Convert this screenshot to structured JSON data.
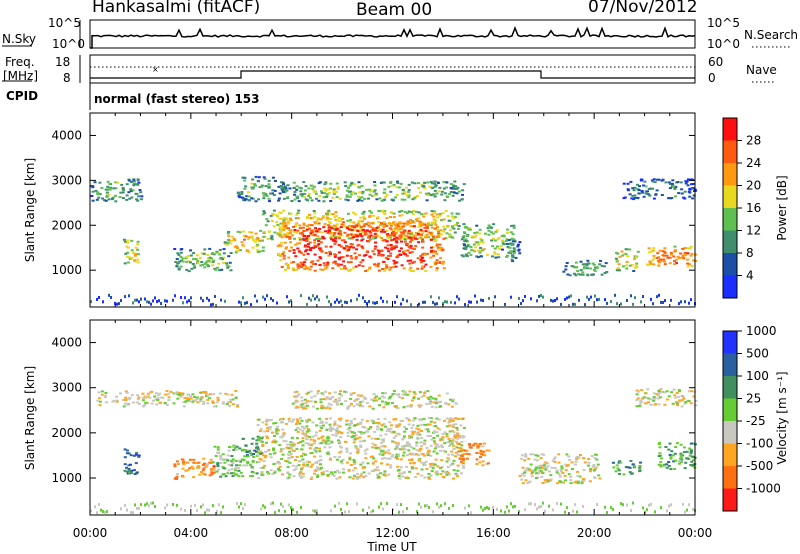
{
  "header": {
    "station": "Hankasalmi (fitACF)",
    "beam": "Beam 00",
    "date": "07/Nov/2012"
  },
  "strips": {
    "nsky_label": "N.Sky",
    "nsky_ticks": [
      "10^5",
      "10^0"
    ],
    "nsearch_label": "N.Search",
    "nsearch_ticks": [
      "10^5",
      "10^0"
    ],
    "freq_label_1": "Freq.",
    "freq_label_2": "[MHz]",
    "freq_ticks": [
      "18",
      "8"
    ],
    "nave_label": "Nave",
    "nave_ticks": [
      "60",
      "0"
    ],
    "cpid_label": "CPID",
    "cpid_text": "normal (fast stereo) 153"
  },
  "axes": {
    "x_ticks": [
      "00:00",
      "04:00",
      "08:00",
      "12:00",
      "16:00",
      "20:00",
      "00:00"
    ],
    "x_label": "Time UT",
    "y_ticks": [
      "1000",
      "2000",
      "3000",
      "4000"
    ],
    "y_label": "Slant Range [km]"
  },
  "colorbars": {
    "power_label": "Power [dB]",
    "power_ticks": [
      "4",
      "8",
      "12",
      "16",
      "20",
      "24",
      "28"
    ],
    "power_colors": [
      "#1a2fff",
      "#1c4fa8",
      "#3f8f6e",
      "#5fbf50",
      "#e8d820",
      "#ff9a10",
      "#ff5a10",
      "#ff1010"
    ],
    "velocity_label": "Velocity [m s⁻¹]",
    "velocity_ticks": [
      "1000",
      "500",
      "100",
      "25",
      "-25",
      "-100",
      "-500",
      "-1000"
    ],
    "velocity_colors": [
      "#2233ff",
      "#2a5fa0",
      "#3f8f5f",
      "#66cc33",
      "#c8c8c0",
      "#ffa520",
      "#ff7010",
      "#ff1a1a"
    ]
  },
  "chart_data": {
    "type": "heatmap",
    "x_range_hours": [
      0,
      24
    ],
    "y_range_km": [
      180,
      4500
    ],
    "panels": [
      {
        "name": "Power",
        "blobs": [
          {
            "t0": 0.0,
            "t1": 2.0,
            "r0": 2550,
            "r1": 3050,
            "level": 2.5
          },
          {
            "t0": 1.3,
            "t1": 1.9,
            "r0": 1100,
            "r1": 1700,
            "level": 4
          },
          {
            "t0": 3.3,
            "t1": 5.6,
            "r0": 1000,
            "r1": 1500,
            "level": 3
          },
          {
            "t0": 5.3,
            "t1": 6.9,
            "r0": 1400,
            "r1": 1900,
            "level": 4.5
          },
          {
            "t0": 5.8,
            "t1": 7.3,
            "r0": 2550,
            "r1": 3100,
            "level": 2.5
          },
          {
            "t0": 6.8,
            "t1": 14.6,
            "r0": 1700,
            "r1": 2350,
            "level": 4.5
          },
          {
            "t0": 7.4,
            "t1": 14.0,
            "r0": 1000,
            "r1": 2100,
            "level": 6.5
          },
          {
            "t0": 7.4,
            "t1": 14.8,
            "r0": 2550,
            "r1": 3000,
            "level": 3
          },
          {
            "t0": 14.7,
            "t1": 16.8,
            "r0": 1300,
            "r1": 2050,
            "level": 3.5
          },
          {
            "t0": 16.3,
            "t1": 17.0,
            "r0": 1200,
            "r1": 1700,
            "level": 2
          },
          {
            "t0": 18.7,
            "t1": 20.5,
            "r0": 900,
            "r1": 1250,
            "level": 2.5
          },
          {
            "t0": 20.8,
            "t1": 21.7,
            "r0": 1000,
            "r1": 1500,
            "level": 4
          },
          {
            "t0": 21.1,
            "t1": 24.0,
            "r0": 2600,
            "r1": 3050,
            "level": 1.5
          },
          {
            "t0": 22.0,
            "t1": 24.0,
            "r0": 1100,
            "r1": 1550,
            "level": 5.5
          }
        ]
      },
      {
        "name": "Velocity",
        "blobs": [
          {
            "t0": 0.2,
            "t1": 5.8,
            "r0": 2600,
            "r1": 2950,
            "level": 4
          },
          {
            "t0": 1.3,
            "t1": 1.9,
            "r0": 1100,
            "r1": 1700,
            "level": 1
          },
          {
            "t0": 3.3,
            "t1": 4.9,
            "r0": 1000,
            "r1": 1450,
            "level": 5.5
          },
          {
            "t0": 4.8,
            "t1": 6.6,
            "r0": 1050,
            "r1": 1750,
            "level": 3
          },
          {
            "t0": 6.0,
            "t1": 6.8,
            "r0": 1500,
            "r1": 1950,
            "level": 2
          },
          {
            "t0": 6.6,
            "t1": 14.8,
            "r0": 1000,
            "r1": 2350,
            "level": 4
          },
          {
            "t0": 8.0,
            "t1": 14.5,
            "r0": 2550,
            "r1": 2950,
            "level": 4
          },
          {
            "t0": 14.5,
            "t1": 15.8,
            "r0": 1300,
            "r1": 1800,
            "level": 5.5
          },
          {
            "t0": 17.0,
            "t1": 20.2,
            "r0": 900,
            "r1": 1550,
            "level": 4
          },
          {
            "t0": 20.7,
            "t1": 21.8,
            "r0": 1100,
            "r1": 1400,
            "level": 2
          },
          {
            "t0": 21.5,
            "t1": 24.0,
            "r0": 2600,
            "r1": 3000,
            "level": 4
          },
          {
            "t0": 22.5,
            "t1": 24.0,
            "r0": 1200,
            "r1": 1800,
            "level": 2.5
          }
        ]
      }
    ]
  }
}
